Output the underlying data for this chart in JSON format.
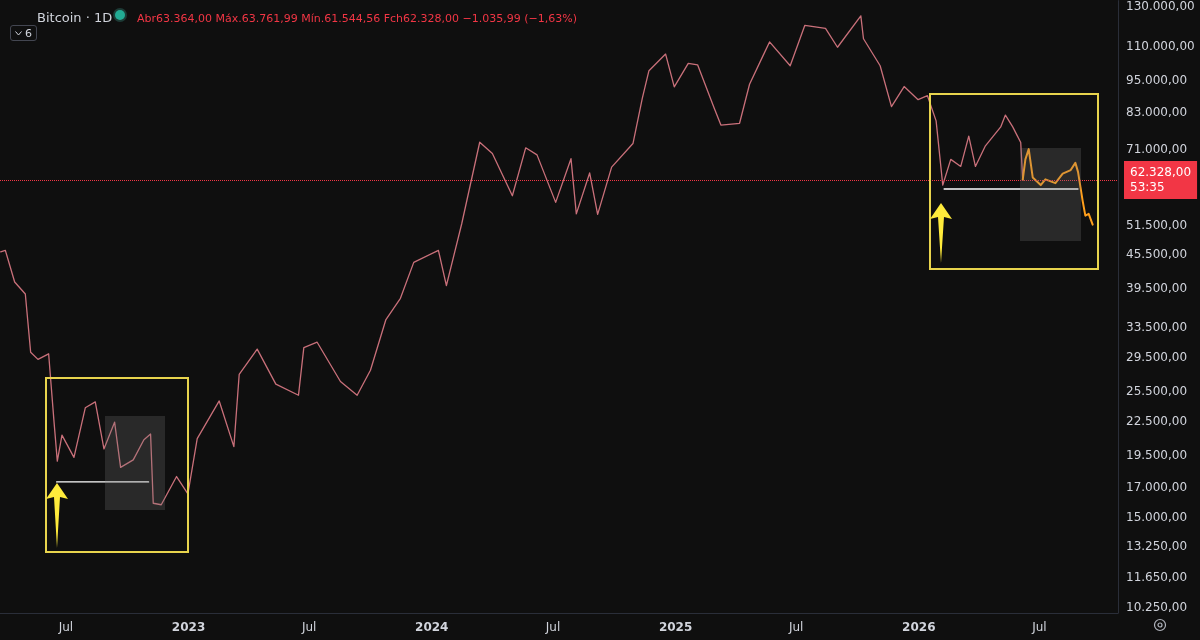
{
  "chart_data": {
    "type": "line",
    "title": "Bitcoin · 1D",
    "subtitle": "Abr63.364,00 Máx.63.761,99 Mín.61.544,56 Fch62.328,00 −1.035,99 (−1,63%)",
    "annotations": [
      "6"
    ],
    "log": "y",
    "grid": false,
    "marker": "none",
    "line_style": "solid",
    "xlim": [
      "2022-03-24",
      "2026-10-27"
    ],
    "xticks": [
      {
        "value": "2022-07-01",
        "label": "Jul"
      },
      {
        "value": "2023-01-01",
        "label": "2023"
      },
      {
        "value": "2023-07-01",
        "label": "Jul"
      },
      {
        "value": "2024-01-01",
        "label": "2024"
      },
      {
        "value": "2024-07-01",
        "label": "Jul"
      },
      {
        "value": "2025-01-01",
        "label": "2025"
      },
      {
        "value": "2025-07-01",
        "label": "Jul"
      },
      {
        "value": "2026-01-01",
        "label": "2026"
      },
      {
        "value": "2026-07-01",
        "label": "Jul"
      }
    ],
    "ylim": [
      10000,
      133000
    ],
    "yticks": [
      {
        "value": 10250,
        "label": "10.250,00"
      },
      {
        "value": 11650,
        "label": "11.650,00"
      },
      {
        "value": 13250,
        "label": "13.250,00"
      },
      {
        "value": 15000,
        "label": "15.000,00"
      },
      {
        "value": 17000,
        "label": "17.000,00"
      },
      {
        "value": 19500,
        "label": "19.500,00"
      },
      {
        "value": 22500,
        "label": "22.500,00"
      },
      {
        "value": 25500,
        "label": "25.500,00"
      },
      {
        "value": 29500,
        "label": "29.500,00"
      },
      {
        "value": 33500,
        "label": "33.500,00"
      },
      {
        "value": 39500,
        "label": "39.500,00"
      },
      {
        "value": 45500,
        "label": "45.500,00"
      },
      {
        "value": 51500,
        "label": "51.500,00"
      },
      {
        "value": 71000,
        "label": "71.000,00"
      },
      {
        "value": 83000,
        "label": "83.000,00"
      },
      {
        "value": 95000,
        "label": "95.000,00"
      },
      {
        "value": 110000,
        "label": "110.000,00"
      },
      {
        "value": 130000,
        "label": "130.000,00"
      }
    ],
    "ref_lines": [
      {
        "axis": "y",
        "value": 62328,
        "label": "62.328,00\n53:35",
        "color": "#f23645",
        "line_style": "dotted"
      }
    ],
    "series": [
      {
        "color": "#c9707a",
        "x": [
          "2022-03-25",
          "2022-04-01",
          "2022-04-15",
          "2022-05-01",
          "2022-05-09",
          "2022-05-20",
          "2022-06-05",
          "2022-06-13",
          "2022-06-18",
          "2022-06-25",
          "2022-07-13",
          "2022-07-30",
          "2022-08-14",
          "2022-08-27",
          "2022-09-12",
          "2022-09-21",
          "2022-10-10",
          "2022-10-26",
          "2022-11-05",
          "2022-11-09",
          "2022-11-21",
          "2022-12-14",
          "2022-12-31",
          "2023-01-14",
          "2023-02-16",
          "2023-03-10",
          "2023-03-18",
          "2023-04-14",
          "2023-05-12",
          "2023-06-15",
          "2023-06-23",
          "2023-07-13",
          "2023-08-17",
          "2023-09-11",
          "2023-10-01",
          "2023-10-24",
          "2023-11-15",
          "2023-12-05",
          "2024-01-11",
          "2024-01-23",
          "2024-02-15",
          "2024-03-13",
          "2024-04-01",
          "2024-05-01",
          "2024-05-21",
          "2024-06-07",
          "2024-07-05",
          "2024-07-28",
          "2024-08-05",
          "2024-08-25",
          "2024-09-06",
          "2024-09-27",
          "2024-10-29",
          "2024-11-12",
          "2024-11-22",
          "2024-12-17",
          "2024-12-30",
          "2025-01-20",
          "2025-02-03",
          "2025-02-28",
          "2025-03-10",
          "2025-04-07",
          "2025-04-22",
          "2025-05-22",
          "2025-06-22",
          "2025-07-14",
          "2025-08-14",
          "2025-09-01",
          "2025-10-06",
          "2025-10-10",
          "2025-11-04",
          "2025-11-21",
          "2025-12-10",
          "2025-12-31",
          "2026-01-14",
          "2026-01-27",
          "2026-02-06",
          "2026-02-18",
          "2026-03-05",
          "2026-03-17",
          "2026-03-27",
          "2026-04-11",
          "2026-05-04",
          "2026-05-11",
          "2026-05-22",
          "2026-06-03",
          "2026-06-06"
        ],
        "values": [
          46000,
          46300,
          40500,
          38500,
          30100,
          29200,
          29900,
          22500,
          19000,
          21200,
          19300,
          23800,
          24400,
          20000,
          22400,
          18500,
          19100,
          20800,
          21300,
          15900,
          15800,
          17800,
          16550,
          20900,
          24500,
          20200,
          27400,
          30500,
          26300,
          25100,
          30700,
          31400,
          26600,
          25100,
          27900,
          34500,
          37800,
          44000,
          46300,
          39900,
          51800,
          73100,
          69700,
          58300,
          71400,
          69300,
          56700,
          68200,
          54000,
          64200,
          53900,
          65800,
          72700,
          88000,
          98900,
          106100,
          92400,
          102000,
          101400,
          84400,
          78600,
          79200,
          93400,
          111700,
          101000,
          119800,
          118300,
          109200,
          124700,
          113200,
          101000,
          85000,
          92500,
          87500,
          89000,
          80000,
          61000,
          68000,
          66000,
          75000,
          66000,
          72000,
          78000,
          82000,
          78000,
          73000,
          62328
        ]
      },
      {
        "color": "#ff9f1c",
        "x": [
          "2026-06-06",
          "2026-06-10",
          "2026-06-15",
          "2026-06-21",
          "2026-07-03",
          "2026-07-10",
          "2026-07-25",
          "2026-08-05",
          "2026-08-17",
          "2026-08-24",
          "2026-08-28",
          "2026-09-04",
          "2026-09-08",
          "2026-09-13",
          "2026-09-19"
        ],
        "values": [
          62328,
          68000,
          71000,
          63000,
          61000,
          62500,
          61500,
          64000,
          65000,
          67000,
          64500,
          57000,
          53600,
          54000,
          51600
        ]
      },
      {
        "color": "#ffffff",
        "x": [
          "2022-06-17",
          "2022-11-02"
        ],
        "values": [
          17400,
          17400
        ]
      },
      {
        "color": "#ffffff",
        "x": [
          "2026-02-08",
          "2026-08-28"
        ],
        "values": [
          60000,
          60000
        ]
      }
    ]
  }
}
